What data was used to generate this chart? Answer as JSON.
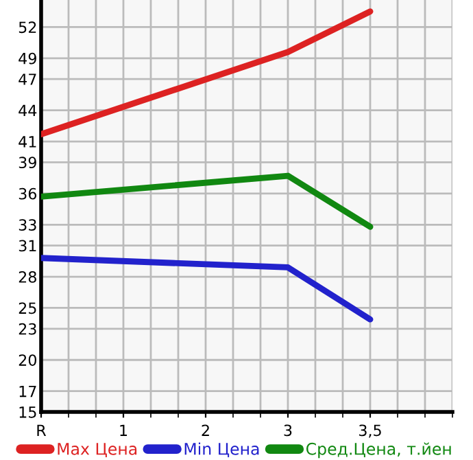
{
  "chart_data": {
    "type": "line",
    "categories": [
      "R",
      "1",
      "2",
      "3",
      "3,5"
    ],
    "series": [
      {
        "name": "Max Цена",
        "color": "#dd2222",
        "x": [
          "R",
          "3",
          "3,5"
        ],
        "values": [
          41.7,
          49.6,
          53.5
        ]
      },
      {
        "name": "Min Цена",
        "color": "#2222cc",
        "x": [
          "R",
          "3",
          "3,5"
        ],
        "values": [
          29.8,
          28.9,
          23.9
        ]
      },
      {
        "name": "Сред.Цена, т.йен",
        "color": "#118811",
        "x": [
          "R",
          "3",
          "3,5"
        ],
        "values": [
          35.7,
          37.7,
          32.8
        ]
      }
    ],
    "ylim": [
      15,
      54.6
    ],
    "yticks": [
      15,
      17,
      20,
      23,
      25,
      28,
      31,
      33,
      36,
      39,
      41,
      44,
      47,
      49,
      52
    ],
    "grid": true,
    "legend": "bottom",
    "marker": "none",
    "line_style": "solid"
  }
}
